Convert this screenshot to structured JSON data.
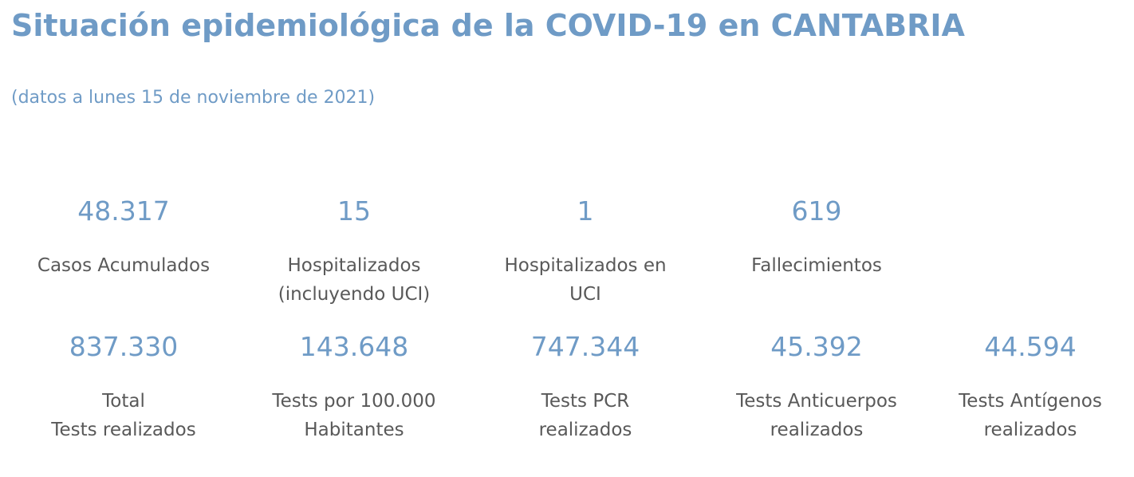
{
  "header": {
    "title": "Situación epidemiológica de la COVID-19 en CANTABRIA",
    "subtitle": "(datos a lunes 15 de noviembre de 2021)"
  },
  "row1": [
    {
      "value": "48.317",
      "label_line1": "Casos Acumulados",
      "label_line2": ""
    },
    {
      "value": "15",
      "label_line1": "Hospitalizados",
      "label_line2": "(incluyendo UCI)"
    },
    {
      "value": "1",
      "label_line1": "Hospitalizados en",
      "label_line2": "UCI"
    },
    {
      "value": "619",
      "label_line1": "Fallecimientos",
      "label_line2": ""
    }
  ],
  "row2": [
    {
      "value": "837.330",
      "label_line1": "Total",
      "label_line2": "Tests realizados"
    },
    {
      "value": "143.648",
      "label_line1": "Tests por 100.000",
      "label_line2": "Habitantes"
    },
    {
      "value": "747.344",
      "label_line1": "Tests PCR",
      "label_line2": "realizados"
    },
    {
      "value": "45.392",
      "label_line1": "Tests Anticuerpos",
      "label_line2": "realizados"
    },
    {
      "value": "44.594",
      "label_line1": "Tests Antígenos",
      "label_line2": "realizados"
    }
  ]
}
